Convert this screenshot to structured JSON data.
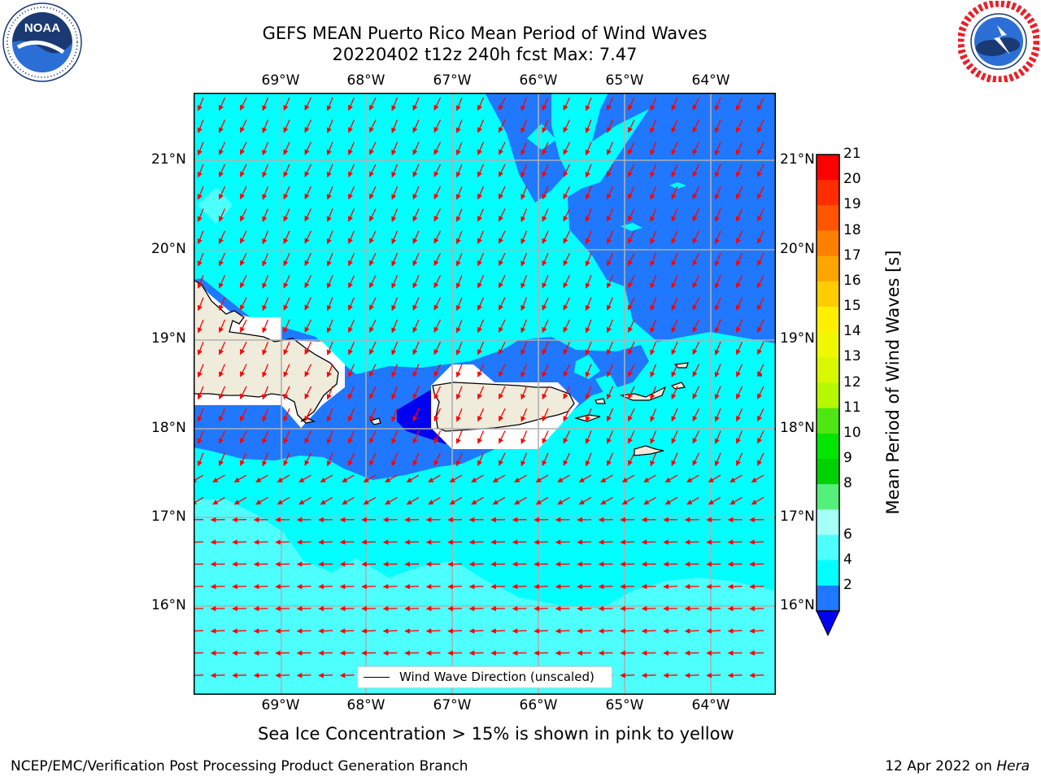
{
  "title": {
    "line1": "GEFS MEAN Puerto Rico Mean Period of Wind Waves",
    "line2": "20220402 t12z 240h fcst   Max: 7.47"
  },
  "logos": {
    "noaa": {
      "text": "NOAA",
      "ring": "NATIONAL OCEANIC AND ATMOSPHERIC ADMINISTRATION · U.S. DEPARTMENT OF COMMERCE"
    },
    "nws": {
      "ring": "NATIONAL WEATHER SERVICE"
    }
  },
  "map": {
    "lon_labels": [
      "69°W",
      "68°W",
      "67°W",
      "66°W",
      "65°W",
      "64°W"
    ],
    "lat_labels": [
      "21°N",
      "20°N",
      "19°N",
      "18°N",
      "17°N",
      "16°N"
    ],
    "legend_label": "Wind Wave Direction (unscaled)",
    "colors": {
      "dark_blue": "#0000f0",
      "blue": "#1f78ff",
      "cyan": "#00ffff",
      "light_cyan": "#4dfffd",
      "land": "#efecdc",
      "arrow": "#ff0000"
    }
  },
  "colorbar": {
    "title": "Mean Period of Wind Waves [s]",
    "labels": [
      "21",
      "20",
      "19",
      "18",
      "17",
      "16",
      "15",
      "14",
      "13",
      "12",
      "11",
      "10",
      "9",
      "8",
      "6",
      "4",
      "2"
    ],
    "colors": [
      "#ff0000",
      "#ff2d00",
      "#ff5500",
      "#ff8000",
      "#ffa500",
      "#ffcc00",
      "#fff000",
      "#f0f800",
      "#d8f800",
      "#b6f800",
      "#50e614",
      "#00e600",
      "#00d200",
      "#55f07a",
      "#a6fff7",
      "#4dfffd",
      "#00ffff",
      "#1f78ff"
    ],
    "extend_color": "#0000f0"
  },
  "note": "Sea Ice Concentration > 15% is shown in pink to yellow",
  "footer": {
    "left": "NCEP/EMC/Verification Post Processing Product Generation Branch",
    "date": "12 Apr 2022 on",
    "machine": "Hera"
  }
}
